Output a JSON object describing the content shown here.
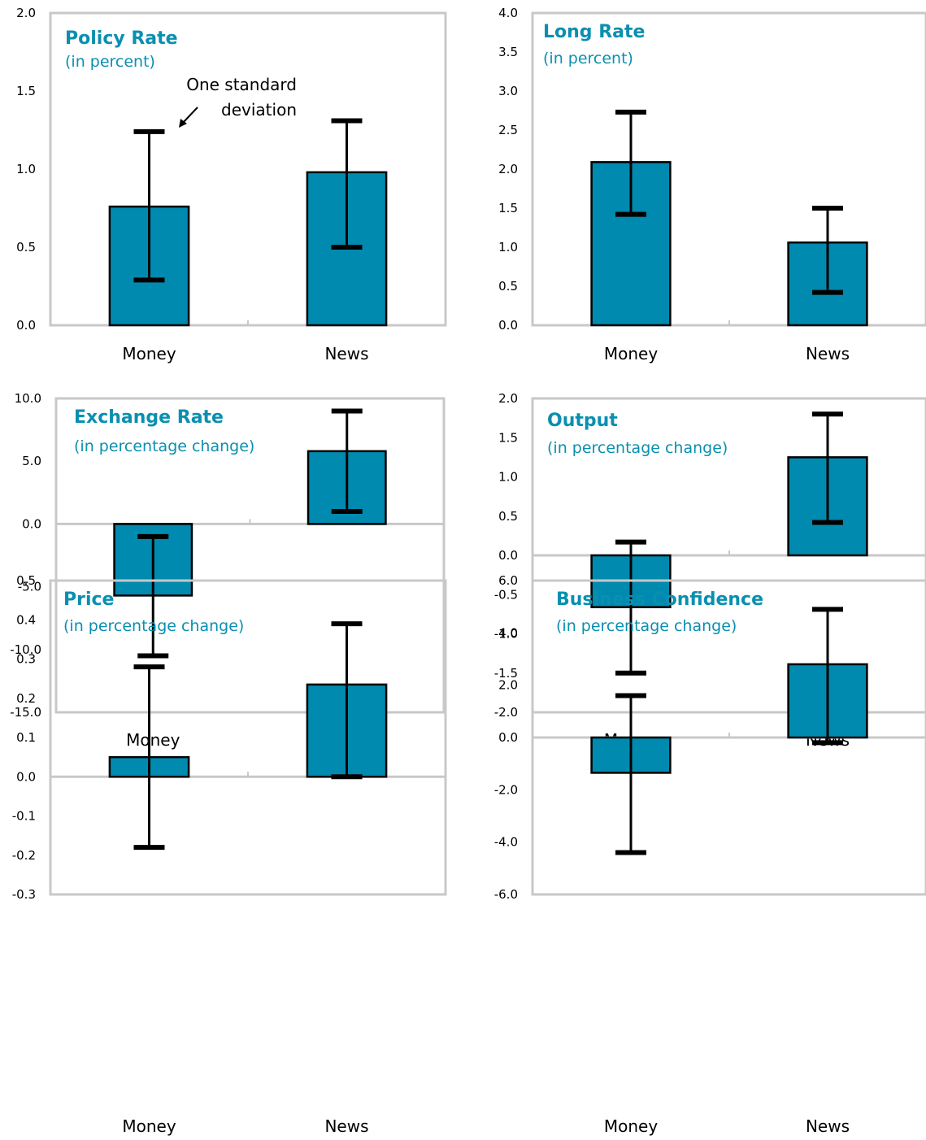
{
  "colors": {
    "bar": "#008aaf",
    "frame": "#c8c8c8",
    "accent_text": "#0a8fb0",
    "error_bar": "#000000"
  },
  "chart_data": [
    {
      "type": "bar",
      "title": "Policy Rate",
      "subtitle": "(in percent)",
      "categories": [
        "Money",
        "News"
      ],
      "values": [
        0.76,
        0.98
      ],
      "error_low": [
        0.29,
        0.5
      ],
      "error_high": [
        1.24,
        1.31
      ],
      "ylim": [
        0.0,
        2.0
      ],
      "yticks": [
        "0.0",
        "0.5",
        "1.0",
        "1.5",
        "2.0"
      ],
      "annotation": [
        "One standard",
        "deviation"
      ]
    },
    {
      "type": "bar",
      "title": "Long Rate",
      "subtitle": "(in percent)",
      "categories": [
        "Money",
        "News"
      ],
      "values": [
        2.09,
        1.06
      ],
      "error_low": [
        1.42,
        0.42
      ],
      "error_high": [
        2.73,
        1.5
      ],
      "ylim": [
        0.0,
        4.0
      ],
      "yticks": [
        "0.0",
        "0.5",
        "1.0",
        "1.5",
        "2.0",
        "2.5",
        "3.0",
        "3.5",
        "4.0"
      ]
    },
    {
      "type": "bar",
      "title": "Exchange Rate",
      "subtitle": "(in percentage change)",
      "categories": [
        "Money",
        "News"
      ],
      "values": [
        -5.7,
        5.8
      ],
      "error_low": [
        -10.5,
        1.0
      ],
      "error_high": [
        -1.0,
        9.0
      ],
      "ylim": [
        -15.0,
        10.0
      ],
      "yticks": [
        "-15.0",
        "-10.0",
        "-5.0",
        "0.0",
        "5.0",
        "10.0"
      ]
    },
    {
      "type": "bar",
      "title": "Output",
      "subtitle": "(in percentage change)",
      "categories": [
        "Money",
        "News"
      ],
      "values": [
        -0.66,
        1.25
      ],
      "error_low": [
        -1.5,
        0.42
      ],
      "error_high": [
        0.17,
        1.8
      ],
      "ylim": [
        -2.0,
        2.0
      ],
      "yticks": [
        "-2.0",
        "-1.5",
        "-1.0",
        "-0.5",
        "0.0",
        "0.5",
        "1.0",
        "1.5",
        "2.0"
      ]
    },
    {
      "type": "bar",
      "title": "Price",
      "subtitle": "(in percentage change)",
      "categories": [
        "Money",
        "News"
      ],
      "values": [
        0.05,
        0.235
      ],
      "error_low": [
        -0.18,
        0.0
      ],
      "error_high": [
        0.28,
        0.39
      ],
      "ylim": [
        -0.3,
        0.5
      ],
      "yticks": [
        "-0.3",
        "-0.2",
        "-0.1",
        "0.0",
        "0.1",
        "0.2",
        "0.3",
        "0.4",
        "0.5"
      ]
    },
    {
      "type": "bar",
      "title": "Business Confidence",
      "subtitle": "(in percentage change)",
      "categories": [
        "Money",
        "News"
      ],
      "values": [
        -1.35,
        2.8
      ],
      "error_low": [
        -4.4,
        -0.2
      ],
      "error_high": [
        1.6,
        4.9
      ],
      "ylim": [
        -6.0,
        6.0
      ],
      "yticks": [
        "-6.0",
        "-4.0",
        "-2.0",
        "0.0",
        "2.0",
        "4.0",
        "6.0"
      ]
    }
  ]
}
